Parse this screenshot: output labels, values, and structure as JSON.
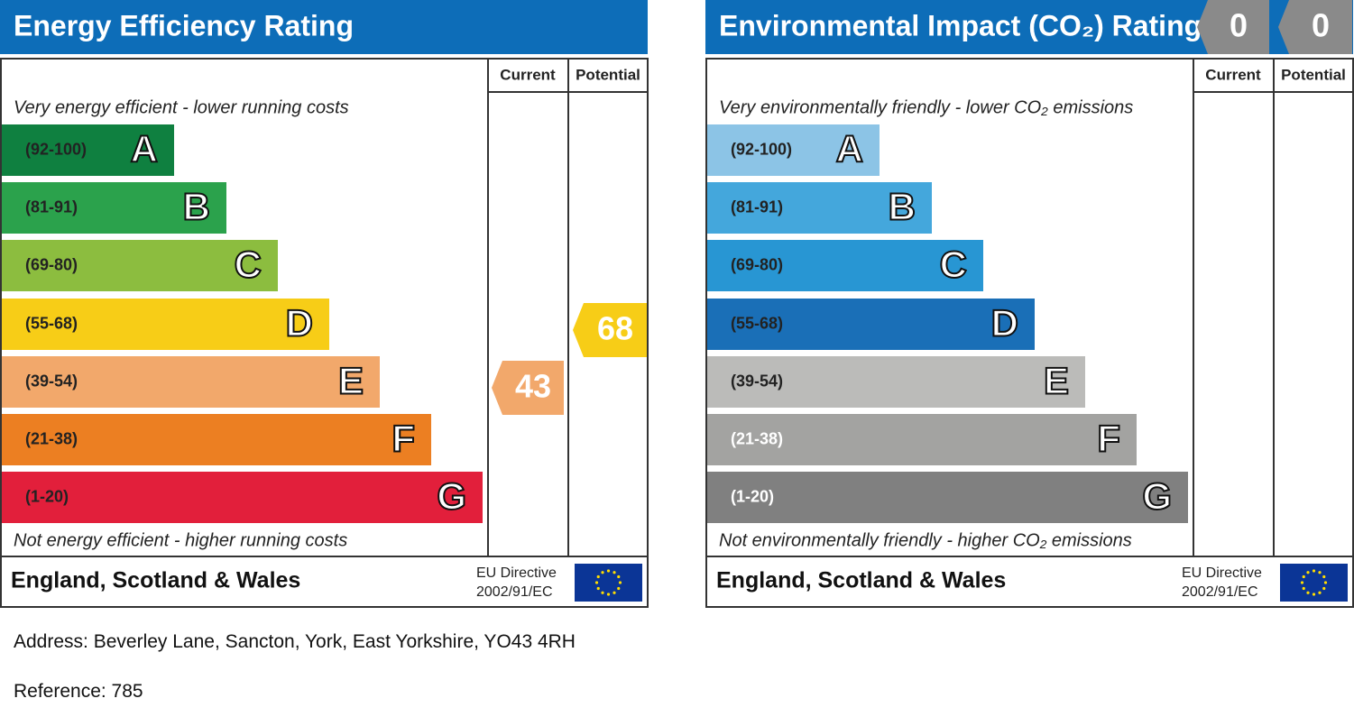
{
  "panels": [
    {
      "title": "Energy Efficiency Rating",
      "columns": [
        "Current",
        "Potential"
      ],
      "top_note": "Very energy efficient - lower running costs",
      "bottom_note": "Not energy efficient - higher running costs",
      "bands": [
        {
          "range": "(92-100)",
          "letter": "A",
          "color": "#0f8040"
        },
        {
          "range": "(81-91)",
          "letter": "B",
          "color": "#2ba24c"
        },
        {
          "range": "(69-80)",
          "letter": "C",
          "color": "#8cbd3f"
        },
        {
          "range": "(55-68)",
          "letter": "D",
          "color": "#f7cd17"
        },
        {
          "range": "(39-54)",
          "letter": "E",
          "color": "#f2a86b"
        },
        {
          "range": "(21-38)",
          "letter": "F",
          "color": "#ec7f22"
        },
        {
          "range": "(1-20)",
          "letter": "G",
          "color": "#e21f3b"
        }
      ],
      "current": 43,
      "potential": 68,
      "footer": "England, Scotland & Wales",
      "directive": [
        "EU Directive",
        "2002/91/EC"
      ]
    },
    {
      "title": "Environmental Impact (CO₂) Rating",
      "columns": [
        "Current",
        "Potential"
      ],
      "top_note": "Very environmentally friendly - lower CO₂ emissions",
      "bottom_note": "Not environmentally friendly - higher CO₂ emissions",
      "bands": [
        {
          "range": "(92-100)",
          "letter": "A",
          "color": "#8cc4e6"
        },
        {
          "range": "(81-91)",
          "letter": "B",
          "color": "#44a7dc"
        },
        {
          "range": "(69-80)",
          "letter": "C",
          "color": "#2896d3"
        },
        {
          "range": "(55-68)",
          "letter": "D",
          "color": "#1a6fb7"
        },
        {
          "range": "(39-54)",
          "letter": "E",
          "color": "#bbbbb9"
        },
        {
          "range": "(21-38)",
          "letter": "F",
          "color": "#a3a3a1"
        },
        {
          "range": "(1-20)",
          "letter": "G",
          "color": "#808080"
        }
      ],
      "current": 0,
      "potential": 0,
      "footer": "England, Scotland & Wales",
      "directive": [
        "EU Directive",
        "2002/91/EC"
      ]
    }
  ],
  "address": "Address: Beverley Lane, Sancton, York, East Yorkshire, YO43 4RH",
  "reference": "Reference: 785"
}
